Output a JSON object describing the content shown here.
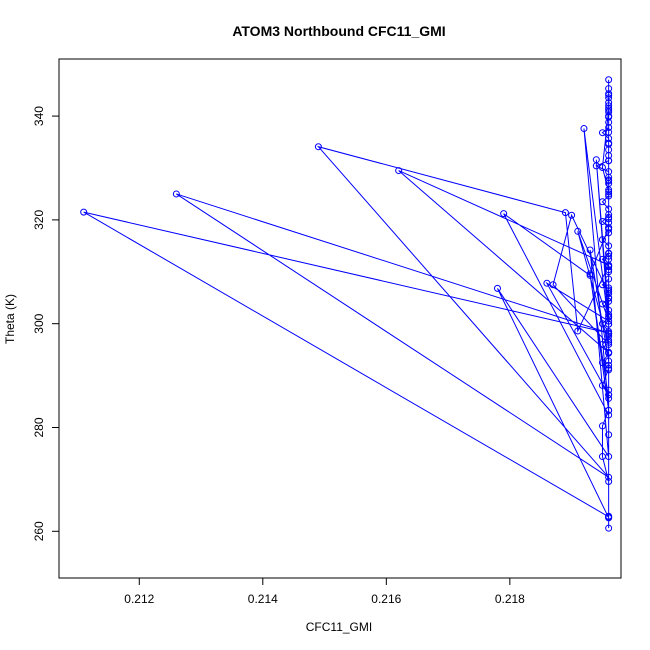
{
  "chart_data": {
    "type": "line",
    "title": "ATOM3 Northbound CFC11_GMI",
    "xlabel": "CFC11_GMI",
    "ylabel": "Theta (K)",
    "xlim": [
      0.2107,
      0.2198
    ],
    "ylim": [
      251,
      351
    ],
    "x_ticks": [
      0.212,
      0.214,
      0.216,
      0.218
    ],
    "x_tick_labels": [
      "0.212",
      "0.214",
      "0.216",
      "0.218"
    ],
    "y_ticks": [
      260,
      280,
      300,
      320,
      340
    ],
    "y_tick_labels": [
      "260",
      "280",
      "300",
      "320",
      "340"
    ],
    "grid": false,
    "legend": "none",
    "marker": "open-circle",
    "color": "#0000ff",
    "series": [
      {
        "x": [
          0.2196,
          0.2196,
          0.2196,
          0.2195,
          0.2195,
          0.2196,
          0.2196,
          0.2195,
          0.2196,
          0.2195,
          0.2196,
          0.2195,
          0.2196,
          0.2196,
          0.2195,
          0.2196,
          0.2196,
          0.2195,
          0.2196,
          0.2196,
          0.2195,
          0.2196,
          0.2196,
          0.2196,
          0.2195,
          0.2196,
          0.2196,
          0.2195,
          0.2196,
          0.2196,
          0.2195,
          0.2196,
          0.2196,
          0.2195,
          0.2196,
          0.2196,
          0.2196,
          0.2196,
          0.2196,
          0.2194,
          0.2196,
          0.2196,
          0.2196,
          0.2196,
          0.2196,
          0.2195,
          0.2196,
          0.2196,
          0.2196,
          0.2196,
          0.2196,
          0.2196,
          0.2196,
          0.2196,
          0.2196,
          0.2196,
          0.2196,
          0.2195,
          0.2196,
          0.2196,
          0.2196,
          0.2196,
          0.2196,
          0.2196,
          0.2196,
          0.2196,
          0.2196,
          0.2196,
          0.2196,
          0.2196,
          0.2196,
          0.2196,
          0.2196,
          0.2196,
          0.2196,
          0.2196,
          0.2196,
          0.2196,
          0.2196,
          0.2196,
          0.2196,
          0.2196,
          0.2196,
          0.2196,
          0.2196,
          0.2196,
          0.2196,
          0.2196,
          0.2196,
          0.2196,
          0.2196,
          0.2196,
          0.2111,
          0.2196,
          0.2126,
          0.2196,
          0.2149,
          0.2189,
          0.2191,
          0.2196,
          0.2162,
          0.2196,
          0.2196,
          0.2179,
          0.2193,
          0.2196,
          0.2196,
          0.2178,
          0.2196,
          0.2193,
          0.2196,
          0.2196,
          0.219,
          0.2187,
          0.2196,
          0.2191,
          0.2196,
          0.2186,
          0.2196,
          0.2196,
          0.2193,
          0.2196,
          0.2192,
          0.2196,
          0.2194,
          0.2196,
          0.2196
        ],
        "y": [
          260.6,
          262.6,
          269.6,
          274.4,
          280.3,
          283.3,
          286.3,
          288.1,
          291.4,
          292.5,
          294.3,
          296.0,
          297.6,
          298.5,
          300.0,
          301.2,
          302.6,
          303.8,
          305.0,
          306.2,
          307.5,
          308.6,
          310.0,
          311.0,
          312.4,
          313.6,
          315.0,
          316.2,
          317.5,
          318.5,
          319.7,
          321.0,
          322.1,
          323.5,
          324.6,
          325.8,
          327.0,
          328.2,
          329.3,
          330.4,
          331.4,
          332.4,
          333.5,
          334.6,
          335.7,
          336.8,
          337.8,
          338.8,
          339.8,
          340.8,
          341.5,
          342.6,
          343.5,
          344.3,
          345.3,
          347.0,
          341.2,
          330.1,
          325.4,
          318.2,
          311.1,
          304.3,
          298.0,
          291.1,
          287.2,
          296.4,
          304.9,
          313.0,
          320.5,
          331.4,
          336.9,
          327.5,
          319.5,
          312.4,
          306.9,
          301.4,
          296.8,
          292.0,
          299.9,
          306.5,
          313.5,
          320.2,
          327.7,
          334.8,
          340.0,
          344.0,
          342.0,
          325.0,
          310.4,
          294.5,
          278.6,
          262.8,
          321.5,
          298.2,
          325.0,
          270.4,
          334.1,
          321.4,
          298.6,
          311.3,
          329.5,
          294.4,
          282.4,
          321.2,
          309.3,
          285.6,
          262.6,
          306.8,
          274.4,
          314.2,
          292.8,
          305.8,
          320.9,
          307.5,
          296.0,
          317.8,
          300.5,
          307.8,
          286.3,
          318.5,
          309.6,
          283.3,
          337.6,
          299.9,
          331.6,
          301.8,
          262.9
        ]
      }
    ]
  }
}
